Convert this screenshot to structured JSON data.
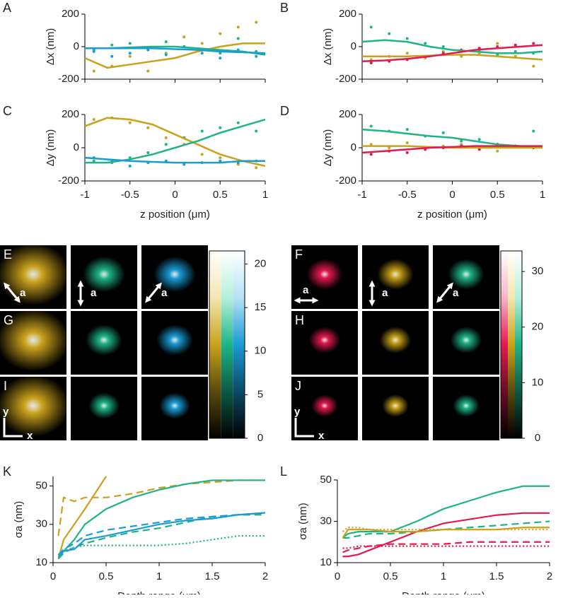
{
  "chart_data": [
    {
      "type": "scatter_fit",
      "panel": "A",
      "y_label": "Δx (nm)",
      "xlim": [
        -1,
        1
      ],
      "xticks": [
        -1,
        -0.5,
        0,
        0.5,
        1
      ],
      "xtick_labels": false,
      "ylim": [
        -200,
        200
      ],
      "yticks": [
        -200,
        0,
        200
      ],
      "x_points": [
        -0.9,
        -0.7,
        -0.5,
        -0.3,
        -0.1,
        0.1,
        0.3,
        0.5,
        0.7,
        0.9
      ],
      "x_fit": [
        -1,
        -0.75,
        -0.5,
        -0.25,
        0,
        0.25,
        0.5,
        0.75,
        1
      ],
      "series": [
        {
          "color": "#c9a21c",
          "points": [
            -150,
            -120,
            -60,
            -150,
            -40,
            60,
            20,
            80,
            120,
            150
          ],
          "fit": [
            -70,
            -130,
            -110,
            -90,
            -70,
            -30,
            0,
            20,
            20
          ]
        },
        {
          "color": "#1fb487",
          "points": [
            -20,
            10,
            20,
            -10,
            30,
            0,
            -20,
            -40,
            50,
            -30
          ],
          "fit": [
            -10,
            -10,
            -5,
            0,
            0,
            -10,
            -20,
            -30,
            -50
          ]
        },
        {
          "color": "#1a9bd4",
          "points": [
            -30,
            -60,
            -40,
            -20,
            -50,
            0,
            -40,
            -70,
            -20,
            -60
          ],
          "fit": [
            -10,
            -10,
            -10,
            -10,
            -15,
            -20,
            -30,
            -35,
            -40
          ]
        }
      ]
    },
    {
      "type": "scatter_fit",
      "panel": "B",
      "y_label": "Δx (nm)",
      "xlim": [
        -1,
        1
      ],
      "xticks": [
        -1,
        -0.5,
        0,
        0.5,
        1
      ],
      "xtick_labels": false,
      "ylim": [
        -200,
        200
      ],
      "yticks": [
        -200,
        0,
        200
      ],
      "x_points": [
        -0.9,
        -0.7,
        -0.5,
        -0.3,
        -0.1,
        0.1,
        0.3,
        0.5,
        0.7,
        0.9
      ],
      "x_fit": [
        -1,
        -0.75,
        -0.5,
        -0.25,
        0,
        0.25,
        0.5,
        0.75,
        1
      ],
      "series": [
        {
          "color": "#1fb487",
          "points": [
            120,
            80,
            50,
            20,
            0,
            -30,
            -20,
            -50,
            -30,
            -40
          ],
          "fit": [
            30,
            40,
            30,
            0,
            -20,
            -30,
            -40,
            -40,
            -30
          ]
        },
        {
          "color": "#c9a21c",
          "points": [
            -80,
            -60,
            -40,
            -70,
            -30,
            -60,
            -40,
            20,
            -60,
            -120
          ],
          "fit": [
            -60,
            -60,
            -60,
            -55,
            -50,
            -50,
            -60,
            -70,
            -80
          ]
        },
        {
          "color": "#e3194f",
          "points": [
            -100,
            -90,
            -80,
            -60,
            -40,
            -20,
            -10,
            0,
            10,
            20
          ],
          "fit": [
            -90,
            -85,
            -75,
            -60,
            -40,
            -20,
            -10,
            0,
            10
          ]
        }
      ]
    },
    {
      "type": "scatter_fit",
      "panel": "C",
      "y_label": "Δy (nm)",
      "x_label": "z position (μm)",
      "xlim": [
        -1,
        1
      ],
      "xticks": [
        -1,
        -0.5,
        0,
        0.5,
        1
      ],
      "xtick_labels": true,
      "ylim": [
        -200,
        200
      ],
      "yticks": [
        -200,
        0,
        200
      ],
      "x_points": [
        -0.9,
        -0.7,
        -0.5,
        -0.3,
        -0.1,
        0.1,
        0.3,
        0.5,
        0.7,
        0.9
      ],
      "x_fit": [
        -1,
        -0.75,
        -0.5,
        -0.25,
        0,
        0.25,
        0.5,
        0.75,
        1
      ],
      "series": [
        {
          "color": "#c9a21c",
          "points": [
            170,
            180,
            150,
            120,
            60,
            20,
            -40,
            -60,
            -100,
            -120
          ],
          "fit": [
            130,
            180,
            170,
            140,
            80,
            20,
            -40,
            -80,
            -110
          ]
        },
        {
          "color": "#1fb487",
          "points": [
            -80,
            -90,
            -60,
            -30,
            20,
            60,
            100,
            120,
            150,
            100
          ],
          "fit": [
            -90,
            -90,
            -70,
            -40,
            0,
            40,
            90,
            130,
            170
          ]
        },
        {
          "color": "#1a9bd4",
          "points": [
            -60,
            -80,
            -110,
            -90,
            -80,
            -100,
            -90,
            -80,
            -90,
            -80
          ],
          "fit": [
            -60,
            -70,
            -80,
            -85,
            -90,
            -90,
            -90,
            -80,
            -80
          ]
        }
      ]
    },
    {
      "type": "scatter_fit",
      "panel": "D",
      "y_label": "Δy (nm)",
      "x_label": "z position (μm)",
      "xlim": [
        -1,
        1
      ],
      "xticks": [
        -1,
        -0.5,
        0,
        0.5,
        1
      ],
      "xtick_labels": true,
      "ylim": [
        -200,
        200
      ],
      "yticks": [
        -200,
        0,
        200
      ],
      "x_points": [
        -0.9,
        -0.7,
        -0.5,
        -0.3,
        -0.1,
        0.1,
        0.3,
        0.5,
        0.7,
        0.9
      ],
      "x_fit": [
        -1,
        -0.75,
        -0.5,
        -0.25,
        0,
        0.25,
        0.5,
        0.75,
        1
      ],
      "series": [
        {
          "color": "#1fb487",
          "points": [
            130,
            100,
            110,
            70,
            90,
            40,
            50,
            20,
            10,
            100
          ],
          "fit": [
            110,
            100,
            85,
            70,
            60,
            40,
            20,
            10,
            0
          ]
        },
        {
          "color": "#c9a21c",
          "points": [
            20,
            0,
            30,
            -10,
            10,
            20,
            0,
            -20,
            10,
            0
          ],
          "fit": [
            10,
            10,
            10,
            5,
            0,
            0,
            0,
            0,
            0
          ]
        },
        {
          "color": "#e3194f",
          "points": [
            -40,
            -20,
            -30,
            -10,
            0,
            10,
            -10,
            20,
            10,
            0
          ],
          "fit": [
            -30,
            -20,
            -10,
            0,
            5,
            10,
            10,
            10,
            10
          ]
        }
      ]
    },
    {
      "type": "colorbar",
      "ylim": [
        0,
        21.5
      ],
      "yticks": [
        0,
        5,
        10,
        15,
        20
      ],
      "stripes": [
        [
          "#000000",
          "#5a4a0c",
          "#c9a21c",
          "#f3e6b0",
          "#ffffff"
        ],
        [
          "#000000",
          "#0c5a44",
          "#1fb487",
          "#b4f0dc",
          "#ffffff"
        ],
        [
          "#000000",
          "#0c4a66",
          "#1a9bd4",
          "#b4e2f6",
          "#ffffff"
        ]
      ]
    },
    {
      "type": "colorbar",
      "ylim": [
        0,
        33.7
      ],
      "yticks": [
        0,
        10,
        20,
        30
      ],
      "stripes": [
        [
          "#000000",
          "#6a0c22",
          "#e3194f",
          "#f7b4c8",
          "#ffffff"
        ],
        [
          "#000000",
          "#5a4a0c",
          "#c9a21c",
          "#f3e6b0",
          "#ffffff"
        ],
        [
          "#000000",
          "#0c5a44",
          "#1fb487",
          "#b4f0dc",
          "#ffffff"
        ]
      ]
    },
    {
      "type": "line",
      "panel": "K",
      "y_label": "σa (nm)",
      "x_label": "Depth range (μm)",
      "xlim": [
        0,
        2
      ],
      "xticks": [
        0,
        0.5,
        1,
        1.5,
        2
      ],
      "ylim": [
        10,
        55
      ],
      "yticks": [
        10,
        30,
        50
      ],
      "x": [
        0.05,
        0.1,
        0.2,
        0.3,
        0.5,
        0.75,
        1,
        1.25,
        1.5,
        1.75,
        2
      ],
      "series": [
        {
          "color": "#c9a21c",
          "dash": "solid",
          "values": [
            12,
            22,
            30,
            38,
            55,
            null,
            null,
            null,
            null,
            null,
            null
          ]
        },
        {
          "color": "#c9a21c",
          "dash": "dashed",
          "values": [
            24,
            44,
            42,
            44,
            44,
            46,
            49,
            51,
            52,
            53,
            53
          ]
        },
        {
          "color": "#1fb487",
          "dash": "solid",
          "values": [
            14,
            16,
            22,
            30,
            38,
            44,
            48,
            51,
            53,
            53,
            53
          ]
        },
        {
          "color": "#1fb487",
          "dash": "dashed",
          "values": [
            12,
            15,
            18,
            20,
            23,
            26,
            28,
            31,
            34,
            35,
            35
          ]
        },
        {
          "color": "#1fb487",
          "dash": "dotted",
          "values": [
            13,
            16,
            18,
            19,
            19,
            19,
            19,
            20,
            22,
            24,
            24
          ]
        },
        {
          "color": "#1a9bd4",
          "dash": "solid",
          "values": [
            13,
            16,
            17,
            22,
            24,
            27,
            30,
            32,
            33,
            35,
            36
          ]
        },
        {
          "color": "#1a9bd4",
          "dash": "dashed",
          "values": [
            14,
            17,
            20,
            24,
            27,
            29,
            31,
            33,
            34,
            35,
            36
          ]
        }
      ]
    },
    {
      "type": "line",
      "panel": "L",
      "y_label": "σa (nm)",
      "x_label": "Depth range (μm)",
      "xlim": [
        0,
        2
      ],
      "xticks": [
        0,
        0.5,
        1,
        1.5,
        2
      ],
      "ylim": [
        10,
        50
      ],
      "yticks": [
        10,
        30,
        50
      ],
      "x": [
        0.05,
        0.1,
        0.2,
        0.3,
        0.5,
        0.75,
        1,
        1.25,
        1.5,
        1.75,
        2
      ],
      "series": [
        {
          "color": "#1fb487",
          "dash": "solid",
          "values": [
            22,
            24,
            25,
            25,
            25,
            30,
            36,
            40,
            44,
            47,
            47
          ]
        },
        {
          "color": "#e3194f",
          "dash": "solid",
          "values": [
            13,
            13,
            14,
            16,
            20,
            25,
            29,
            31,
            33,
            34,
            34
          ]
        },
        {
          "color": "#1fb487",
          "dash": "dashed",
          "values": [
            22,
            22,
            23,
            24,
            24,
            25,
            26,
            27,
            28,
            29,
            30
          ]
        },
        {
          "color": "#e3194f",
          "dash": "dashed",
          "values": [
            15,
            16,
            17,
            18,
            19,
            19,
            19,
            20,
            20,
            20,
            20
          ]
        },
        {
          "color": "#c9a21c",
          "dash": "solid",
          "values": [
            22,
            26,
            26,
            26,
            25,
            25,
            26,
            26,
            26,
            27,
            27
          ]
        },
        {
          "color": "#c9a21c",
          "dash": "dotted",
          "values": [
            25,
            27,
            27,
            26,
            26,
            26,
            26,
            26,
            26,
            26,
            26
          ]
        },
        {
          "color": "#e3194f",
          "dash": "dotted",
          "values": [
            17,
            17,
            18,
            18,
            18,
            18,
            18,
            18,
            18,
            18,
            18
          ]
        }
      ]
    }
  ],
  "images": {
    "axis_label": "a",
    "x_label": "x",
    "y_label": "y",
    "groups": [
      {
        "colors": [
          "#c9a21c",
          "#1fb487",
          "#1a9bd4"
        ],
        "panels": [
          "E",
          "G",
          "I"
        ]
      },
      {
        "colors": [
          "#e3194f",
          "#c9a21c",
          "#1fb487"
        ],
        "panels": [
          "F",
          "H",
          "J"
        ]
      }
    ]
  }
}
